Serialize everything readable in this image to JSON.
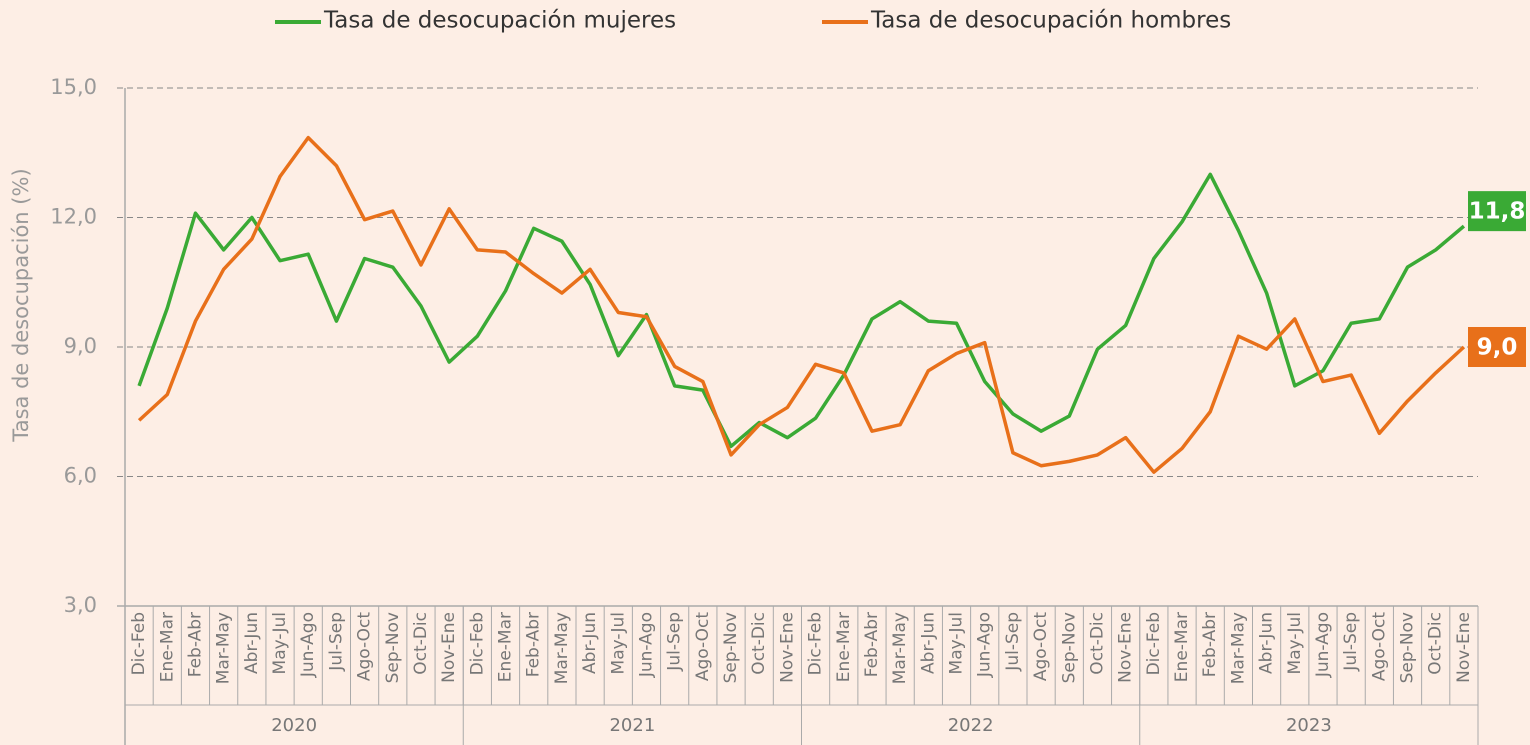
{
  "chart_data": {
    "type": "line",
    "y_axis_label": "Tasa de desocupación (%)",
    "categories": [
      "Dic-Feb",
      "Ene-Mar",
      "Feb-Abr",
      "Mar-May",
      "Abr-Jun",
      "May-Jul",
      "Jun-Ago",
      "Jul-Sep",
      "Ago-Oct",
      "Sep-Nov",
      "Oct-Dic",
      "Nov-Ene",
      "Dic-Feb",
      "Ene-Mar",
      "Feb-Abr",
      "Mar-May",
      "Abr-Jun",
      "May-Jul",
      "Jun-Ago",
      "Jul-Sep",
      "Ago-Oct",
      "Sep-Nov",
      "Oct-Dic",
      "Nov-Ene",
      "Dic-Feb",
      "Ene-Mar",
      "Feb-Abr",
      "Mar-May",
      "Abr-Jun",
      "May-Jul",
      "Jun-Ago",
      "Jul-Sep",
      "Ago-Oct",
      "Sep-Nov",
      "Oct-Dic",
      "Nov-Ene",
      "Dic-Feb",
      "Ene-Mar",
      "Feb-Abr",
      "Mar-May",
      "Abr-Jun",
      "May-Jul",
      "Jun-Ago",
      "Jul-Sep",
      "Ago-Oct",
      "Sep-Nov",
      "Oct-Dic",
      "Nov-Ene"
    ],
    "x_groups": [
      "2020",
      "2021",
      "2022",
      "2023"
    ],
    "series": [
      {
        "name": "Tasa de desocupación mujeres",
        "color": "#3aaa35",
        "values": [
          8.1,
          9.9,
          12.1,
          11.25,
          12.0,
          11.0,
          11.15,
          9.6,
          11.05,
          10.85,
          9.95,
          8.65,
          9.25,
          10.3,
          11.75,
          11.45,
          10.45,
          8.8,
          9.75,
          8.1,
          8.0,
          6.7,
          7.25,
          6.9,
          7.35,
          8.35,
          9.65,
          10.05,
          9.6,
          9.55,
          8.2,
          7.45,
          7.05,
          7.4,
          8.95,
          9.5,
          11.05,
          11.9,
          13.0,
          11.7,
          10.25,
          8.1,
          8.45,
          9.55,
          9.65,
          10.85,
          11.25,
          11.8
        ],
        "value_labels": [
          null,
          null,
          null,
          null,
          null,
          null,
          null,
          null,
          null,
          null,
          null,
          null,
          null,
          null,
          null,
          null,
          null,
          null,
          null,
          null,
          null,
          null,
          null,
          null,
          null,
          null,
          null,
          null,
          null,
          null,
          null,
          null,
          null,
          null,
          null,
          null,
          null,
          null,
          null,
          null,
          null,
          null,
          null,
          null,
          null,
          null,
          null,
          "11,8"
        ]
      },
      {
        "name": "Tasa de desocupación hombres",
        "color": "#e8701a",
        "values": [
          7.3,
          7.9,
          9.6,
          10.8,
          11.5,
          12.95,
          13.85,
          13.2,
          11.95,
          12.15,
          10.9,
          12.2,
          11.25,
          11.2,
          10.7,
          10.25,
          10.8,
          9.8,
          9.7,
          8.55,
          8.2,
          6.5,
          7.2,
          7.6,
          8.6,
          8.4,
          7.05,
          7.2,
          8.45,
          8.85,
          9.1,
          6.55,
          6.25,
          6.35,
          6.5,
          6.9,
          6.1,
          6.65,
          7.5,
          9.25,
          8.95,
          9.65,
          8.2,
          8.35,
          7.0,
          7.75,
          8.4,
          9.0
        ],
        "value_labels": [
          null,
          null,
          null,
          null,
          null,
          null,
          null,
          null,
          null,
          null,
          null,
          null,
          null,
          null,
          null,
          null,
          null,
          null,
          null,
          null,
          null,
          null,
          null,
          null,
          null,
          null,
          null,
          null,
          null,
          null,
          null,
          null,
          null,
          null,
          null,
          null,
          null,
          null,
          null,
          null,
          null,
          null,
          null,
          null,
          null,
          null,
          null,
          "9,0"
        ]
      }
    ],
    "ylim": [
      3,
      15
    ],
    "yticks": [
      {
        "value": 3,
        "label": "3,0"
      },
      {
        "value": 6,
        "label": "6,0"
      },
      {
        "value": 9,
        "label": "9,0"
      },
      {
        "value": 12,
        "label": "12,0"
      },
      {
        "value": 15,
        "label": "15,0"
      }
    ],
    "grid": true,
    "legend": "top"
  }
}
